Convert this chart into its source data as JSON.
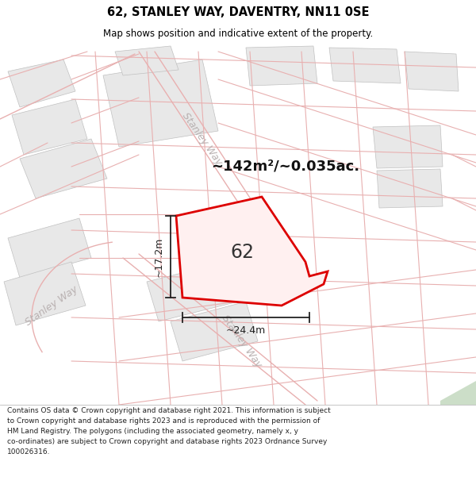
{
  "title": "62, STANLEY WAY, DAVENTRY, NN11 0SE",
  "subtitle": "Map shows position and indicative extent of the property.",
  "footer_text": "Contains OS data © Crown copyright and database right 2021. This information is subject\nto Crown copyright and database rights 2023 and is reproduced with the permission of\nHM Land Registry. The polygons (including the associated geometry, namely x, y\nco-ordinates) are subject to Crown copyright and database rights 2023 Ordnance Survey\n100026316.",
  "map_bg": "#f8f8f8",
  "road_color": "#e8b0b0",
  "road_outline_color": "#d4a0a0",
  "building_color": "#e8e8e8",
  "building_edge": "#c0c0c0",
  "green_color": "#ccdec8",
  "property_fill": "#fff0f0",
  "property_edge": "#dd0000",
  "dim_color": "#222222",
  "road_label_color": "#b8b0b0",
  "area_text": "~142m²/~0.035ac.",
  "dim_width": "~24.4m",
  "dim_height": "~17.2m",
  "property_label": "62",
  "title_fontsize": 10.5,
  "subtitle_fontsize": 8.5
}
